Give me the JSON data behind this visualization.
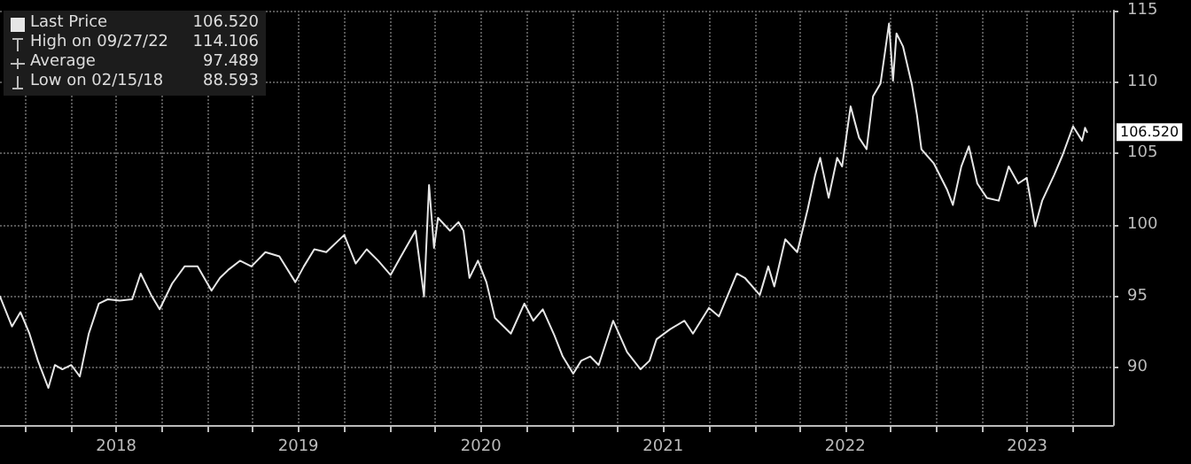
{
  "chart_data": {
    "type": "line",
    "grid": true,
    "legend": "top left",
    "marker": "none",
    "line_style": "solid",
    "xlim": [
      "2017-11-10",
      "2023-12-20"
    ],
    "ylim": [
      86,
      115
    ],
    "yticks": [
      90,
      95,
      100,
      105,
      110,
      115
    ],
    "xticks": [
      {
        "value": "2018-01-01",
        "label": null
      },
      {
        "value": "2018-04-01",
        "label": null
      },
      {
        "value": "2018-07-01",
        "label": "2018"
      },
      {
        "value": "2018-10-01",
        "label": null
      },
      {
        "value": "2019-01-01",
        "label": null
      },
      {
        "value": "2019-04-01",
        "label": null
      },
      {
        "value": "2019-07-01",
        "label": "2019"
      },
      {
        "value": "2019-10-01",
        "label": null
      },
      {
        "value": "2020-01-01",
        "label": null
      },
      {
        "value": "2020-04-01",
        "label": null
      },
      {
        "value": "2020-07-01",
        "label": "2020"
      },
      {
        "value": "2020-10-01",
        "label": null
      },
      {
        "value": "2021-01-01",
        "label": null
      },
      {
        "value": "2021-04-01",
        "label": null
      },
      {
        "value": "2021-07-01",
        "label": "2021"
      },
      {
        "value": "2021-10-01",
        "label": null
      },
      {
        "value": "2022-01-01",
        "label": null
      },
      {
        "value": "2022-04-01",
        "label": null
      },
      {
        "value": "2022-07-01",
        "label": "2022"
      },
      {
        "value": "2022-10-01",
        "label": null
      },
      {
        "value": "2023-01-01",
        "label": null
      },
      {
        "value": "2023-04-01",
        "label": null
      },
      {
        "value": "2023-07-01",
        "label": "2023"
      },
      {
        "value": "2023-10-01",
        "label": null
      }
    ],
    "series": [
      {
        "name": "Last Price",
        "color": "#e6e6e6",
        "x": [
          "2017-11-10",
          "2017-12-04",
          "2017-12-21",
          "2018-01-08",
          "2018-01-25",
          "2018-02-15",
          "2018-02-28",
          "2018-03-15",
          "2018-04-02",
          "2018-04-19",
          "2018-05-07",
          "2018-05-27",
          "2018-06-14",
          "2018-07-08",
          "2018-08-02",
          "2018-08-19",
          "2018-09-09",
          "2018-09-26",
          "2018-10-21",
          "2018-11-15",
          "2018-12-11",
          "2019-01-08",
          "2019-01-25",
          "2019-02-12",
          "2019-03-06",
          "2019-03-29",
          "2019-04-26",
          "2019-05-24",
          "2019-06-25",
          "2019-07-12",
          "2019-08-02",
          "2019-08-26",
          "2019-10-01",
          "2019-10-24",
          "2019-11-15",
          "2019-12-08",
          "2020-01-02",
          "2020-01-21",
          "2020-02-21",
          "2020-03-09",
          "2020-03-19",
          "2020-03-29",
          "2020-04-06",
          "2020-04-30",
          "2020-05-17",
          "2020-05-27",
          "2020-06-08",
          "2020-06-25",
          "2020-07-12",
          "2020-07-29",
          "2020-08-30",
          "2020-09-26",
          "2020-10-14",
          "2020-11-02",
          "2020-11-25",
          "2020-12-12",
          "2021-01-02",
          "2021-01-18",
          "2021-02-05",
          "2021-02-22",
          "2021-03-23",
          "2021-04-20",
          "2021-05-17",
          "2021-06-04",
          "2021-06-18",
          "2021-07-15",
          "2021-08-13",
          "2021-08-30",
          "2021-10-01",
          "2021-10-21",
          "2021-11-26",
          "2021-12-12",
          "2022-01-11",
          "2022-01-28",
          "2022-02-09",
          "2022-03-03",
          "2022-03-27",
          "2022-04-17",
          "2022-05-02",
          "2022-05-12",
          "2022-05-29",
          "2022-06-15",
          "2022-06-25",
          "2022-07-12",
          "2022-07-29",
          "2022-08-13",
          "2022-08-26",
          "2022-09-10",
          "2022-09-27",
          "2022-10-05",
          "2022-10-12",
          "2022-10-25",
          "2022-11-12",
          "2022-11-22",
          "2022-12-01",
          "2022-12-26",
          "2023-01-21",
          "2023-02-02",
          "2023-02-19",
          "2023-03-06",
          "2023-03-23",
          "2023-04-11",
          "2023-05-05",
          "2023-05-25",
          "2023-06-13",
          "2023-06-30",
          "2023-07-17",
          "2023-07-31",
          "2023-08-24",
          "2023-09-10",
          "2023-10-01",
          "2023-10-19",
          "2023-10-25",
          "2023-10-29"
        ],
        "values": [
          95.0,
          92.9,
          93.9,
          92.4,
          90.5,
          88.6,
          90.2,
          89.9,
          90.2,
          89.4,
          92.4,
          94.5,
          94.8,
          94.7,
          94.8,
          96.6,
          95.1,
          94.1,
          95.9,
          97.1,
          97.1,
          95.4,
          96.3,
          96.9,
          97.5,
          97.1,
          98.1,
          97.8,
          96.0,
          97.1,
          98.3,
          98.1,
          99.3,
          97.3,
          98.3,
          97.5,
          96.5,
          97.7,
          99.6,
          95.0,
          102.8,
          98.4,
          100.5,
          99.6,
          100.2,
          99.6,
          96.3,
          97.5,
          96.0,
          93.5,
          92.4,
          94.5,
          93.3,
          94.1,
          92.3,
          90.8,
          89.6,
          90.5,
          90.8,
          90.2,
          93.3,
          91.1,
          89.9,
          90.5,
          92.0,
          92.7,
          93.3,
          92.4,
          94.2,
          93.6,
          96.6,
          96.3,
          95.1,
          97.1,
          95.7,
          99.0,
          98.1,
          101.1,
          103.5,
          104.7,
          101.9,
          104.7,
          104.1,
          108.3,
          106.1,
          105.3,
          109.0,
          109.9,
          114.1,
          110.1,
          113.4,
          112.5,
          109.8,
          107.7,
          105.3,
          104.3,
          102.5,
          101.4,
          104.1,
          105.5,
          102.9,
          101.9,
          101.7,
          104.1,
          102.9,
          103.3,
          99.9,
          101.7,
          103.5,
          104.9,
          106.9,
          105.9,
          106.8,
          106.5
        ]
      }
    ],
    "annotations": [
      "106.520",
      "High on 09/27/22",
      "114.106",
      "Average",
      "97.489",
      "Low on 02/15/18",
      "88.593",
      {
        "text": "106.520",
        "x": "2023-10-29",
        "y": 106.5
      }
    ]
  }
}
